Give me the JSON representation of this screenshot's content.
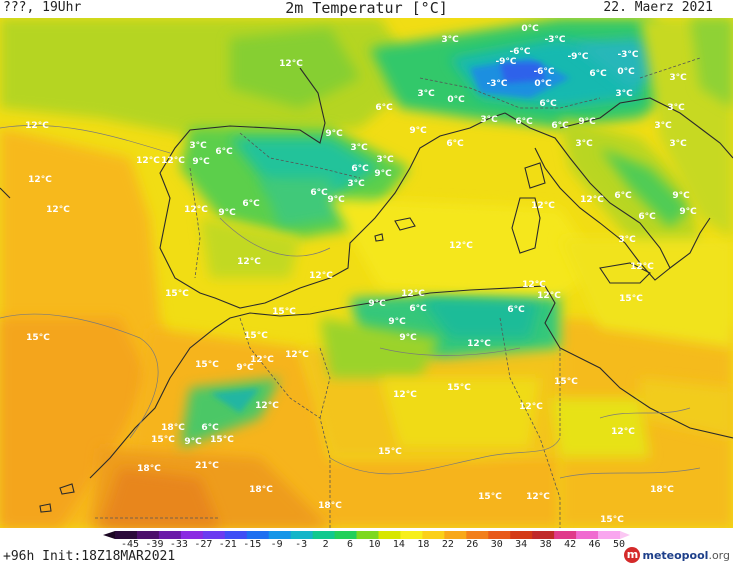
{
  "header": {
    "left": "???, 19Uhr",
    "title": "2m Temperatur [°C]",
    "right": "22. Maerz 2021"
  },
  "footer": {
    "init": "+96h Init:18Z18MAR2021",
    "logo_name": "meteopool",
    "logo_tld": ".org"
  },
  "legend": {
    "ticks": [
      "-45",
      "-39",
      "-33",
      "-27",
      "-21",
      "-15",
      "-9",
      "-3",
      "2",
      "6",
      "10",
      "14",
      "18",
      "22",
      "26",
      "30",
      "34",
      "38",
      "42",
      "46",
      "50"
    ],
    "colors": [
      "#2a0a3a",
      "#4b0f6b",
      "#6a1aa8",
      "#8a2be2",
      "#6b3bf0",
      "#3f4ef5",
      "#1e6ff0",
      "#1596e8",
      "#14b5c8",
      "#10c98e",
      "#22d05a",
      "#7dd820",
      "#d8e600",
      "#f7ef1c",
      "#fbd019",
      "#f8a81a",
      "#f27f1c",
      "#e85a1a",
      "#d43a16",
      "#c02a2a",
      "#e03a8a",
      "#f06ad0",
      "#f9a6ef"
    ]
  },
  "map_labels": [
    {
      "text": "0°C"
    },
    {
      "text": "-3°C"
    },
    {
      "text": "3°C"
    },
    {
      "text": "-6°C"
    },
    {
      "text": "-9°C"
    },
    {
      "text": "-6°C"
    },
    {
      "text": "-9°C"
    },
    {
      "text": "-3°C"
    },
    {
      "text": "6°C"
    },
    {
      "text": "0°C"
    },
    {
      "text": "3°C"
    },
    {
      "text": "-3°C"
    },
    {
      "text": "0°C"
    },
    {
      "text": "6°C"
    },
    {
      "text": "3°C"
    },
    {
      "text": "6°C"
    },
    {
      "text": "3°C"
    },
    {
      "text": "0°C"
    },
    {
      "text": "3°C"
    },
    {
      "text": "3°C"
    },
    {
      "text": "3°C"
    },
    {
      "text": "6°C"
    },
    {
      "text": "6°C"
    },
    {
      "text": "3°C"
    },
    {
      "text": "9°C"
    },
    {
      "text": "3°C"
    },
    {
      "text": "9°C"
    },
    {
      "text": "6°C"
    },
    {
      "text": "3°C"
    },
    {
      "text": "3°C"
    },
    {
      "text": "9°C"
    },
    {
      "text": "12°C"
    },
    {
      "text": "12°C"
    },
    {
      "text": "12°C"
    },
    {
      "text": "12°C"
    },
    {
      "text": "12°C"
    },
    {
      "text": "9°C"
    },
    {
      "text": "6°C"
    },
    {
      "text": "3°C"
    },
    {
      "text": "6°C"
    },
    {
      "text": "3°C"
    },
    {
      "text": "9°C"
    },
    {
      "text": "9°C"
    },
    {
      "text": "12°C"
    },
    {
      "text": "6°C"
    },
    {
      "text": "6°C"
    },
    {
      "text": "9°C"
    },
    {
      "text": "6°C"
    },
    {
      "text": "9°C"
    },
    {
      "text": "12°C"
    },
    {
      "text": "12°C"
    },
    {
      "text": "12°C"
    },
    {
      "text": "3°C"
    },
    {
      "text": "6°C"
    },
    {
      "text": "9°C"
    },
    {
      "text": "12°C"
    },
    {
      "text": "12°C"
    },
    {
      "text": "12°C"
    },
    {
      "text": "15°C"
    },
    {
      "text": "15°C"
    },
    {
      "text": "15°C"
    },
    {
      "text": "9°C"
    },
    {
      "text": "12°C"
    },
    {
      "text": "6°C"
    },
    {
      "text": "9°C"
    },
    {
      "text": "9°C"
    },
    {
      "text": "6°C"
    },
    {
      "text": "12°C"
    },
    {
      "text": "12°C"
    },
    {
      "text": "15°C"
    },
    {
      "text": "12°C"
    },
    {
      "text": "12°C"
    },
    {
      "text": "15°C"
    },
    {
      "text": "12°C"
    },
    {
      "text": "15°C"
    },
    {
      "text": "12°C"
    },
    {
      "text": "15°C"
    },
    {
      "text": "9°C"
    },
    {
      "text": "15°C"
    },
    {
      "text": "12°C"
    },
    {
      "text": "12°C"
    },
    {
      "text": "12°C"
    },
    {
      "text": "18°C"
    },
    {
      "text": "6°C"
    },
    {
      "text": "15°C"
    },
    {
      "text": "9°C"
    },
    {
      "text": "15°C"
    },
    {
      "text": "15°C"
    },
    {
      "text": "18°C"
    },
    {
      "text": "21°C"
    },
    {
      "text": "18°C"
    },
    {
      "text": "15°C"
    },
    {
      "text": "12°C"
    },
    {
      "text": "12°C"
    },
    {
      "text": "18°C"
    },
    {
      "text": "15°C"
    },
    {
      "text": "18°C"
    }
  ]
}
